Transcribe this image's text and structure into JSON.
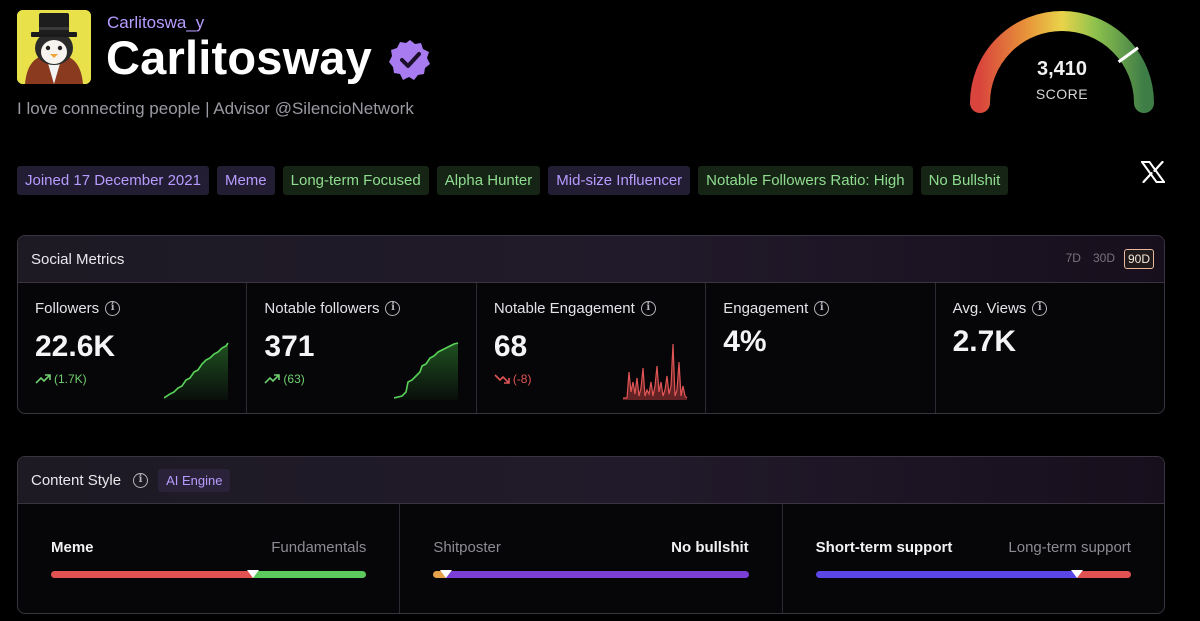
{
  "profile": {
    "handle": "Carlitoswa_y",
    "display_name": "Carlitosway",
    "bio": "I love connecting people | Advisor @SilencioNetwork"
  },
  "score": {
    "value": "3,410",
    "label": "SCORE",
    "gauge_fraction": 0.8
  },
  "tags": [
    {
      "label": "Joined 17 December 2021",
      "tone": "purple"
    },
    {
      "label": "Meme",
      "tone": "purple"
    },
    {
      "label": "Long-term Focused",
      "tone": "green"
    },
    {
      "label": "Alpha Hunter",
      "tone": "green"
    },
    {
      "label": "Mid-size Influencer",
      "tone": "purple"
    },
    {
      "label": "Notable Followers Ratio: High",
      "tone": "green"
    },
    {
      "label": "No Bullshit",
      "tone": "green"
    }
  ],
  "social_metrics": {
    "title": "Social Metrics",
    "ranges": [
      "7D",
      "30D",
      "90D"
    ],
    "active_range": "90D",
    "metrics": [
      {
        "label": "Followers",
        "value": "22.6K",
        "change": "(1.7K)",
        "trend": "up"
      },
      {
        "label": "Notable followers",
        "value": "371",
        "change": "(63)",
        "trend": "up"
      },
      {
        "label": "Notable Engagement",
        "value": "68",
        "change": "(-8)",
        "trend": "down"
      },
      {
        "label": "Engagement",
        "value": "4%"
      },
      {
        "label": "Avg. Views",
        "value": "2.7K"
      }
    ]
  },
  "content_style": {
    "title": "Content Style",
    "badge": "AI Engine",
    "scales": [
      {
        "left": "Meme",
        "right": "Fundamentals",
        "strong": "left",
        "position": 0.64,
        "left_color": "#e05252",
        "right_color": "#5cc95c"
      },
      {
        "left": "Shitposter",
        "right": "No bullshit",
        "strong": "right",
        "position": 0.04,
        "left_color": "#e6a24a",
        "right_color": "#7b3fd6"
      },
      {
        "left": "Short-term support",
        "right": "Long-term support",
        "strong": "left",
        "position": 0.83,
        "left_color": "#5a45e6",
        "right_color": "#e05252"
      }
    ]
  },
  "colors": {
    "accent_purple": "#b79cff",
    "accent_green": "#8fdc8f",
    "up": "#6fcf6f",
    "down": "#e05555",
    "verified": "#a97bf0"
  },
  "icons": [
    "verified-badge-icon",
    "info-icon",
    "trend-up-icon",
    "trend-down-icon",
    "x-logo-icon"
  ]
}
